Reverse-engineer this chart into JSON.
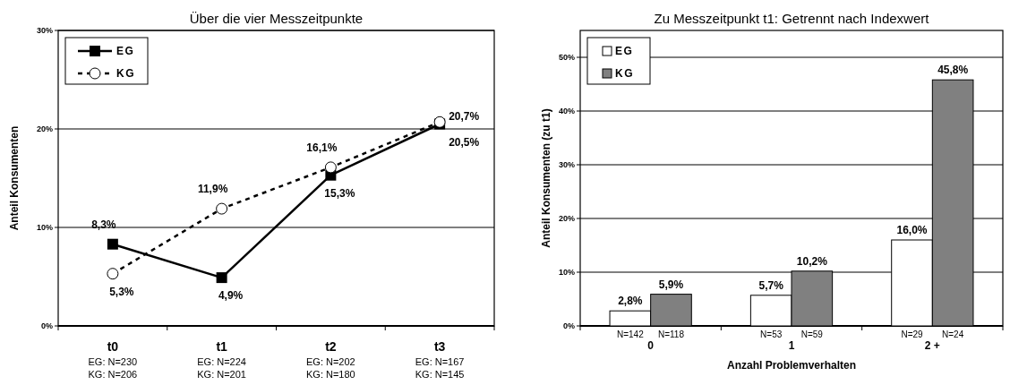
{
  "chart_data": [
    {
      "type": "line",
      "title": "Über die vier Messzeitpunkte",
      "ylabel": "Anteil Konsumenten",
      "categories": [
        "t0",
        "t1",
        "t2",
        "t3"
      ],
      "series": [
        {
          "name": "EG",
          "color": "#000000",
          "marker": "square",
          "line_style": "solid",
          "values": [
            8.3,
            4.9,
            15.3,
            20.5
          ],
          "value_labels": [
            "8,3%",
            "4,9%",
            "15,3%",
            "20,5%"
          ]
        },
        {
          "name": "KG",
          "color": "#000000",
          "marker": "circle",
          "line_style": "dashed",
          "values": [
            5.3,
            11.9,
            16.1,
            20.7
          ],
          "value_labels": [
            "5,3%",
            "11,9%",
            "16,1%",
            "20,7%"
          ]
        }
      ],
      "ylim": [
        0,
        30
      ],
      "yticks": [
        {
          "value": 0,
          "label": "0%"
        },
        {
          "value": 10,
          "label": "10%"
        },
        {
          "value": 20,
          "label": "20%"
        },
        {
          "value": 30,
          "label": "30%"
        }
      ],
      "grid": "y",
      "legend": "top left",
      "annotations": [
        "EG: N=230",
        "KG: N=206",
        "EG: N=224",
        "KG: N=201",
        "EG: N=202",
        "KG: N=180",
        "EG: N=167",
        "KG: N=145"
      ]
    },
    {
      "type": "bar",
      "title": "Zu Messzeitpunkt t1: Getrennt nach Indexwert",
      "xlabel": "Anzahl Problemverhalten",
      "ylabel": "Anteil Konsumenten (zu t1)",
      "categories": [
        "0",
        "1",
        "2 +"
      ],
      "series": [
        {
          "name": "EG",
          "color": "#ffffff",
          "values": [
            2.8,
            5.7,
            16.0
          ],
          "value_labels": [
            "2,8%",
            "5,7%",
            "16,0%"
          ]
        },
        {
          "name": "KG",
          "color": "#808080",
          "values": [
            5.9,
            10.2,
            45.8
          ],
          "value_labels": [
            "5,9%",
            "10,2%",
            "45,8%"
          ]
        }
      ],
      "ylim": [
        0,
        55
      ],
      "yticks": [
        {
          "value": 0,
          "label": "0%"
        },
        {
          "value": 10,
          "label": "10%"
        },
        {
          "value": 20,
          "label": "20%"
        },
        {
          "value": 30,
          "label": "30%"
        },
        {
          "value": 40,
          "label": "40%"
        },
        {
          "value": 50,
          "label": "50%"
        }
      ],
      "grid": "y",
      "legend": "top left",
      "annotations": [
        "N=142",
        "N=118",
        "N=53",
        "N=59",
        "N=29",
        "N=24"
      ]
    }
  ]
}
